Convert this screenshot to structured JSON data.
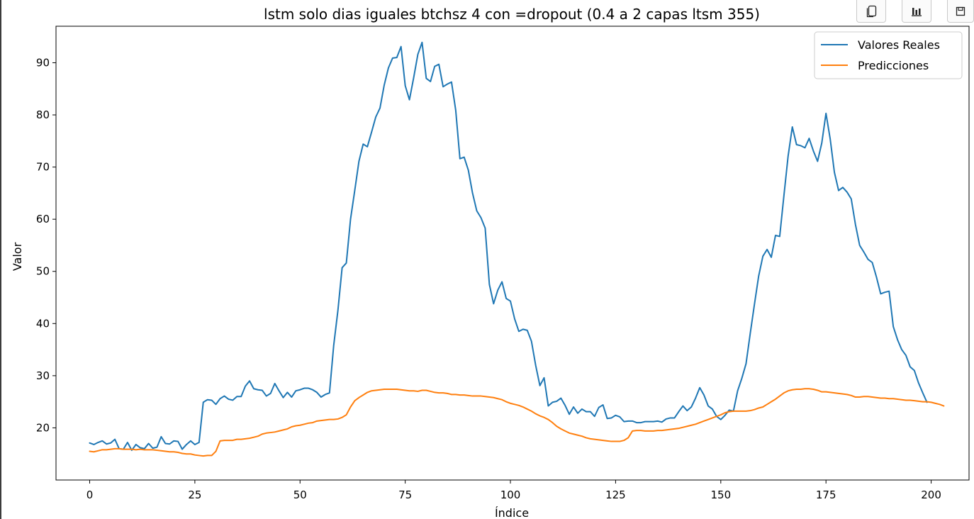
{
  "toolbar": {
    "icons": [
      "copy-icon",
      "bar-chart-icon",
      "save-icon"
    ]
  },
  "chart_data": {
    "type": "line",
    "title": "lstm solo dias iguales btchsz 4 con =dropout (0.4 a 2 capas ltsm 355)",
    "xlabel": "Índice",
    "ylabel": "Valor",
    "xlim": [
      -8,
      209
    ],
    "ylim": [
      10,
      97
    ],
    "xticks": [
      0,
      25,
      50,
      75,
      100,
      125,
      150,
      175,
      200
    ],
    "yticks": [
      20,
      30,
      40,
      50,
      60,
      70,
      80,
      90
    ],
    "grid": false,
    "legend_position": "top-right",
    "series": [
      {
        "name": "Valores Reales",
        "color": "#1f77b4",
        "values": [
          17.1,
          16.8,
          17.2,
          17.5,
          16.9,
          17.1,
          17.8,
          16.0,
          15.9,
          17.2,
          15.7,
          16.8,
          16.2,
          16.0,
          17.0,
          16.1,
          16.3,
          18.3,
          17.0,
          16.9,
          17.5,
          17.4,
          15.9,
          16.8,
          17.5,
          16.8,
          17.2,
          24.9,
          25.4,
          25.3,
          24.5,
          25.6,
          26.1,
          25.5,
          25.3,
          26.0,
          26.0,
          28.0,
          29.0,
          27.5,
          27.3,
          27.2,
          26.1,
          26.6,
          28.5,
          27.1,
          25.8,
          26.8,
          25.9,
          27.1,
          27.3,
          27.6,
          27.6,
          27.3,
          26.8,
          25.9,
          26.4,
          26.7,
          35.8,
          42.5,
          50.7,
          51.6,
          60.0,
          65.5,
          71.1,
          74.4,
          73.9,
          76.7,
          79.6,
          81.3,
          85.7,
          89.0,
          90.9,
          91.0,
          93.1,
          85.6,
          82.9,
          87.1,
          91.6,
          93.9,
          87.0,
          86.4,
          89.3,
          89.7,
          85.4,
          85.9,
          86.3,
          80.9,
          71.6,
          71.9,
          69.4,
          65.0,
          61.6,
          60.3,
          58.3,
          47.5,
          43.8,
          46.4,
          48.0,
          44.8,
          44.3,
          40.9,
          38.5,
          38.9,
          38.7,
          36.6,
          32.0,
          28.1,
          29.6,
          24.2,
          24.9,
          25.1,
          25.7,
          24.3,
          22.6,
          24.0,
          22.8,
          23.6,
          23.1,
          23.1,
          22.2,
          23.9,
          24.4,
          21.8,
          21.9,
          22.4,
          22.1,
          21.2,
          21.3,
          21.3,
          21.0,
          21.0,
          21.2,
          21.2,
          21.2,
          21.3,
          21.1,
          21.7,
          21.9,
          21.9,
          23.1,
          24.2,
          23.3,
          24.0,
          25.7,
          27.7,
          26.3,
          24.2,
          23.6,
          22.2,
          21.6,
          22.4,
          23.4,
          23.2,
          27.1,
          29.5,
          32.3,
          38.1,
          43.7,
          49.1,
          52.9,
          54.2,
          52.7,
          56.9,
          56.7,
          64.5,
          72.1,
          77.7,
          74.3,
          74.1,
          73.7,
          75.5,
          73.1,
          71.1,
          74.6,
          80.3,
          75.4,
          69.0,
          65.5,
          66.1,
          65.2,
          63.9,
          59.0,
          55.0,
          53.7,
          52.3,
          51.7,
          48.9,
          45.7,
          46.0,
          46.2,
          39.4,
          36.9,
          35.0,
          33.9,
          31.7,
          31.0,
          28.6,
          26.7,
          24.9
        ]
      },
      {
        "name": "Predicciones",
        "color": "#ff7f0e",
        "values": [
          15.5,
          15.4,
          15.6,
          15.8,
          15.8,
          15.9,
          16.0,
          16.0,
          15.9,
          15.9,
          15.9,
          15.8,
          15.9,
          15.8,
          15.8,
          15.8,
          15.7,
          15.6,
          15.5,
          15.4,
          15.4,
          15.3,
          15.1,
          15.0,
          15.0,
          14.8,
          14.7,
          14.6,
          14.7,
          14.7,
          15.5,
          17.5,
          17.6,
          17.6,
          17.6,
          17.8,
          17.8,
          17.9,
          18.0,
          18.2,
          18.4,
          18.8,
          19.0,
          19.1,
          19.2,
          19.4,
          19.6,
          19.8,
          20.2,
          20.4,
          20.5,
          20.7,
          20.9,
          21.0,
          21.3,
          21.4,
          21.5,
          21.6,
          21.6,
          21.7,
          22.0,
          22.5,
          24.0,
          25.2,
          25.8,
          26.3,
          26.8,
          27.1,
          27.2,
          27.3,
          27.4,
          27.4,
          27.4,
          27.4,
          27.3,
          27.2,
          27.1,
          27.1,
          27.0,
          27.2,
          27.2,
          27.0,
          26.8,
          26.7,
          26.7,
          26.6,
          26.4,
          26.4,
          26.3,
          26.3,
          26.2,
          26.1,
          26.1,
          26.1,
          26.0,
          25.9,
          25.8,
          25.6,
          25.4,
          25.0,
          24.7,
          24.5,
          24.3,
          24.0,
          23.6,
          23.2,
          22.7,
          22.3,
          22.0,
          21.6,
          21.0,
          20.3,
          19.8,
          19.4,
          19.0,
          18.8,
          18.6,
          18.4,
          18.1,
          17.9,
          17.8,
          17.7,
          17.6,
          17.5,
          17.4,
          17.4,
          17.4,
          17.6,
          18.1,
          19.4,
          19.5,
          19.5,
          19.4,
          19.4,
          19.4,
          19.5,
          19.5,
          19.6,
          19.7,
          19.8,
          19.9,
          20.1,
          20.3,
          20.5,
          20.7,
          21.0,
          21.3,
          21.6,
          21.9,
          22.2,
          22.5,
          22.9,
          23.1,
          23.2,
          23.2,
          23.2,
          23.2,
          23.3,
          23.5,
          23.8,
          24.0,
          24.5,
          25.0,
          25.5,
          26.1,
          26.7,
          27.1,
          27.3,
          27.4,
          27.4,
          27.5,
          27.5,
          27.4,
          27.2,
          26.9,
          26.9,
          26.8,
          26.7,
          26.6,
          26.5,
          26.4,
          26.2,
          25.9,
          25.9,
          26.0,
          26.0,
          25.9,
          25.8,
          25.7,
          25.7,
          25.6,
          25.6,
          25.5,
          25.4,
          25.3,
          25.3,
          25.2,
          25.1,
          25.0,
          25.0,
          24.9,
          24.7,
          24.5,
          24.2
        ]
      }
    ]
  }
}
